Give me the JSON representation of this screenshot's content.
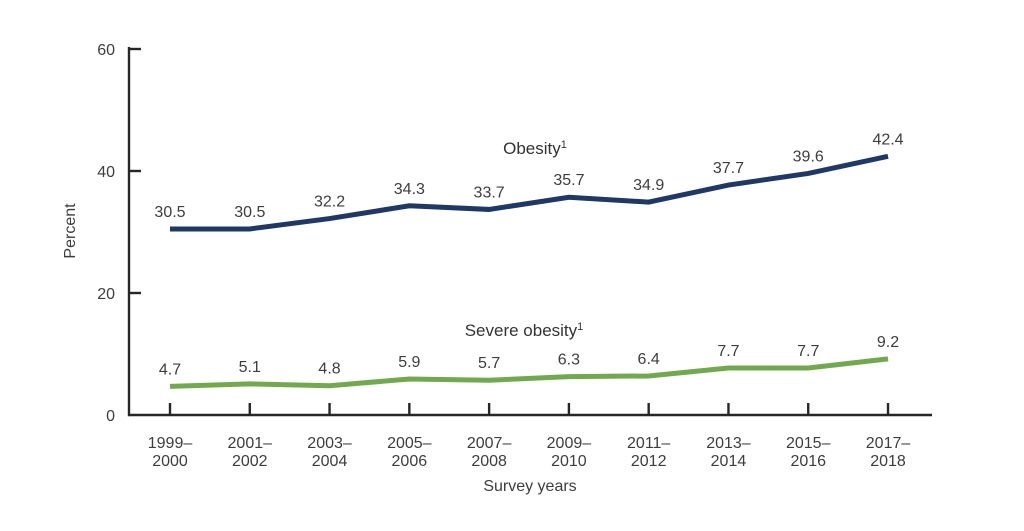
{
  "chart_data": {
    "type": "line",
    "title": "",
    "xlabel": "Survey years",
    "ylabel": "Percent",
    "ylim": [
      0,
      60
    ],
    "yticks": [
      0,
      20,
      40,
      60
    ],
    "grid": false,
    "legend_position": "inline-labels-above-lines",
    "categories": [
      [
        "1999–",
        "2000"
      ],
      [
        "2001–",
        "2002"
      ],
      [
        "2003–",
        "2004"
      ],
      [
        "2005–",
        "2006"
      ],
      [
        "2007–",
        "2008"
      ],
      [
        "2009–",
        "2010"
      ],
      [
        "2011–",
        "2012"
      ],
      [
        "2013–",
        "2014"
      ],
      [
        "2015–",
        "2016"
      ],
      [
        "2017–",
        "2018"
      ]
    ],
    "series": [
      {
        "id": "obesity",
        "label": "Obesity",
        "label_sup": "1",
        "color": "#1f3865",
        "values": [
          30.5,
          30.5,
          32.2,
          34.3,
          33.7,
          35.7,
          34.9,
          37.7,
          39.6,
          42.4
        ]
      },
      {
        "id": "severe-obesity",
        "label": "Severe obesity",
        "label_sup": "1",
        "color": "#72a94f",
        "values": [
          4.7,
          5.1,
          4.8,
          5.9,
          5.7,
          6.3,
          6.4,
          7.7,
          7.7,
          9.2
        ]
      }
    ],
    "colors": {
      "axis": "#262626",
      "text": "#3d3d3d"
    }
  }
}
